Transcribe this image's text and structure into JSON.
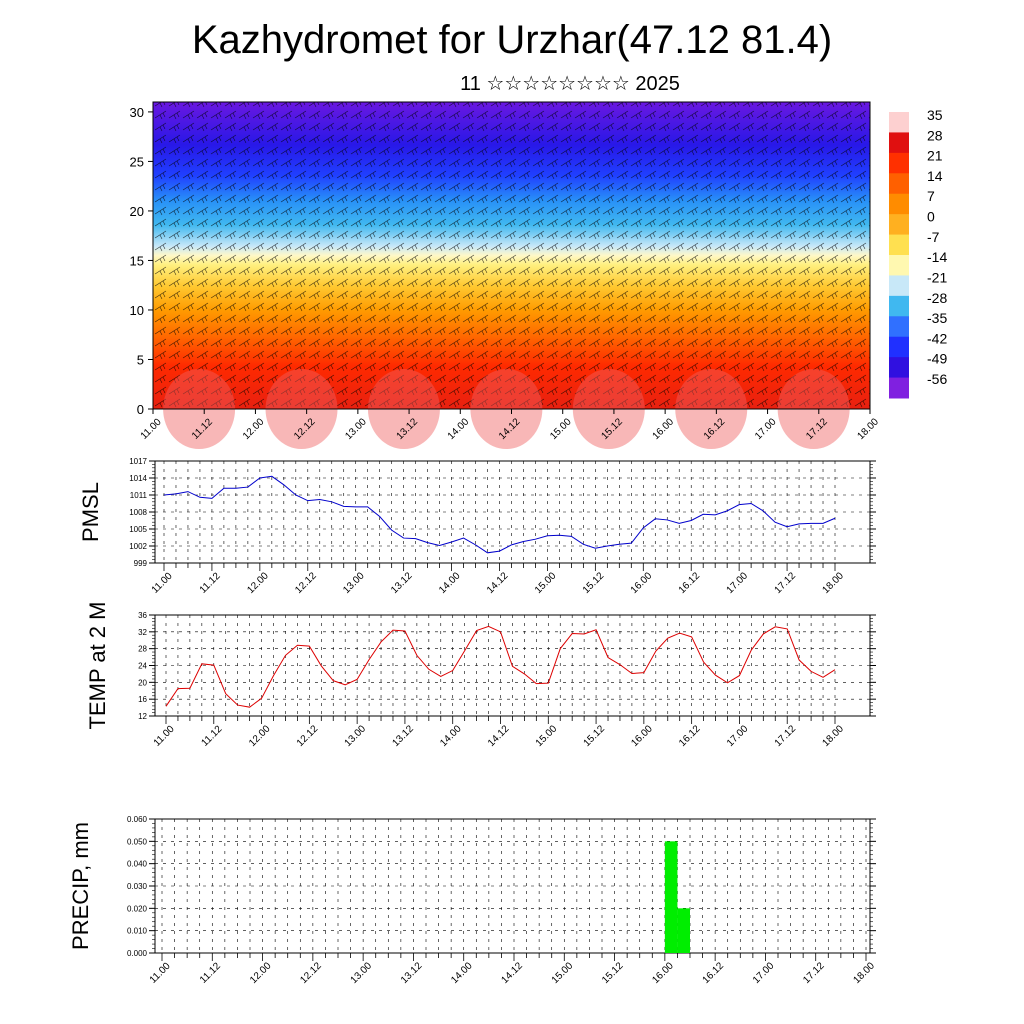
{
  "header": {
    "title": "Kazhydromet for Urzhar(47.12 81.4)",
    "subtitle": "11 ☆☆☆☆☆☆☆☆ 2025"
  },
  "chart_data": [
    {
      "id": "cross-section",
      "type": "heatmap",
      "description_units": "temperature color fill with wind barbs",
      "x_ticks": [
        "11.00",
        "11.12",
        "12.00",
        "12.12",
        "13.00",
        "13.12",
        "14.00",
        "14.12",
        "15.00",
        "15.12",
        "16.00",
        "16.12",
        "17.00",
        "17.12",
        "18.00"
      ],
      "y_ticks": [
        0,
        5,
        10,
        15,
        20,
        25,
        30
      ],
      "ylim": [
        0,
        31
      ],
      "colorbar_labels": [
        "35",
        "28",
        "21",
        "14",
        "7",
        "0",
        "-7",
        "-14",
        "-21",
        "-28",
        "-35",
        "-42",
        "-49",
        "-56"
      ],
      "colormap": [
        "#fdd0d0",
        "#e01010",
        "#ff3000",
        "#ff6000",
        "#ff8c00",
        "#ffb020",
        "#ffe050",
        "#fff8b0",
        "#c8e8f8",
        "#40b8f0",
        "#3070ff",
        "#2030ff",
        "#3010e0",
        "#8020e0"
      ],
      "xlabel": "",
      "ylabel": ""
    },
    {
      "id": "pmsl",
      "type": "line",
      "ylabel": "PMSL",
      "x_ticks": [
        "11.00",
        "11.12",
        "12.00",
        "12.12",
        "13.00",
        "13.12",
        "14.00",
        "14.12",
        "15.00",
        "15.12",
        "16.00",
        "16.12",
        "17.00",
        "17.12",
        "18.00"
      ],
      "y_ticks": [
        999,
        1002,
        1005,
        1008,
        1011,
        1014,
        1017
      ],
      "ylim": [
        999,
        1017
      ],
      "color": "#0000cc",
      "values": [
        1011.0,
        1011.2,
        1011.6,
        1010.6,
        1010.4,
        1012.2,
        1012.2,
        1012.4,
        1014.0,
        1014.3,
        1012.8,
        1011.0,
        1010.0,
        1010.2,
        1009.8,
        1009.0,
        1008.9,
        1008.9,
        1007.2,
        1004.8,
        1003.4,
        1003.3,
        1002.6,
        1002.1,
        1002.7,
        1003.4,
        1002.2,
        1000.8,
        1001.1,
        1002.2,
        1002.8,
        1003.2,
        1003.8,
        1003.9,
        1003.7,
        1002.3,
        1001.6,
        1002.0,
        1002.3,
        1002.5,
        1005.2,
        1006.8,
        1006.6,
        1006.0,
        1006.5,
        1007.6,
        1007.5,
        1008.2,
        1009.3,
        1009.5,
        1008.2,
        1006.2,
        1005.4,
        1005.9,
        1006.0,
        1006.0,
        1006.9
      ]
    },
    {
      "id": "temp2m",
      "type": "line",
      "ylabel": "TEMP at 2 M",
      "x_ticks": [
        "11.00",
        "11.12",
        "12.00",
        "12.12",
        "13.00",
        "13.12",
        "14.00",
        "14.12",
        "15.00",
        "15.12",
        "16.00",
        "16.12",
        "17.00",
        "17.12",
        "18.00"
      ],
      "y_ticks": [
        12,
        16,
        20,
        24,
        28,
        32,
        36
      ],
      "ylim": [
        12,
        36
      ],
      "color": "#dd0000",
      "values": [
        14.3,
        18.5,
        18.6,
        24.4,
        24.1,
        17.3,
        14.6,
        14.1,
        16.2,
        21.6,
        26.4,
        28.8,
        28.6,
        23.9,
        20.4,
        19.4,
        20.7,
        25.4,
        29.6,
        32.4,
        32.2,
        26.4,
        23.1,
        21.4,
        22.8,
        27.5,
        32.3,
        33.3,
        32.0,
        23.8,
        22.0,
        19.7,
        19.8,
        28.0,
        31.6,
        31.5,
        32.5,
        25.9,
        24.2,
        22.1,
        22.3,
        27.4,
        30.5,
        31.7,
        30.8,
        24.8,
        21.7,
        19.9,
        21.6,
        27.7,
        31.5,
        33.2,
        32.7,
        25.3,
        22.6,
        21.2,
        23.0
      ]
    },
    {
      "id": "precip",
      "type": "bar",
      "ylabel": "PRECIP, mm",
      "x_ticks": [
        "11.00",
        "11.12",
        "12.00",
        "12.12",
        "13.00",
        "13.12",
        "14.00",
        "14.12",
        "15.00",
        "15.12",
        "16.00",
        "16.12",
        "17.00",
        "17.12",
        "18.00"
      ],
      "y_ticks": [
        "0.000",
        "0.010",
        "0.020",
        "0.030",
        "0.040",
        "0.050",
        "0.060"
      ],
      "ylim": [
        0,
        0.06
      ],
      "color": "#00ee00",
      "bars": [
        {
          "x_hours": 120,
          "width_hours": 3,
          "value": 0.05
        },
        {
          "x_hours": 123,
          "width_hours": 3,
          "value": 0.02
        }
      ]
    }
  ]
}
